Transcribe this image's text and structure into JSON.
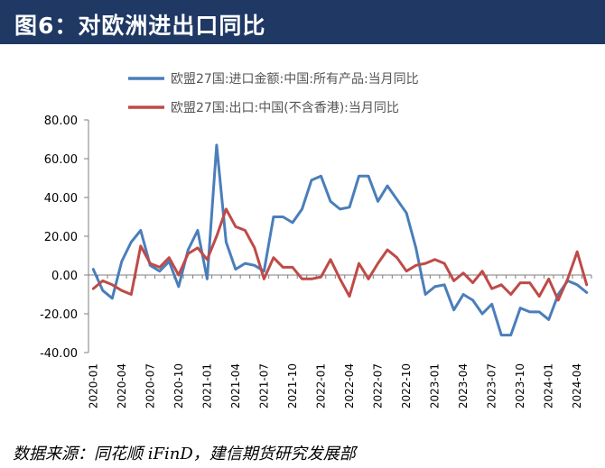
{
  "title": "图6：对欧洲进出口同比",
  "source": "数据来源：同花顺 iFinD，建信期货研究发展部",
  "colors": {
    "import": "#4a7ebb",
    "export": "#be4b48",
    "title_bg": "#1f3864"
  },
  "chart_data": {
    "type": "line",
    "title": "",
    "xlabel": "",
    "ylabel": "",
    "ylim": [
      -40,
      80
    ],
    "yticks": [
      "80.00",
      "60.00",
      "40.00",
      "20.00",
      "0.00",
      "-20.00",
      "-40.00"
    ],
    "x": [
      "2020-01",
      "2020-02",
      "2020-03",
      "2020-04",
      "2020-05",
      "2020-06",
      "2020-07",
      "2020-08",
      "2020-09",
      "2020-10",
      "2020-11",
      "2020-12",
      "2021-01",
      "2021-02",
      "2021-03",
      "2021-04",
      "2021-05",
      "2021-06",
      "2021-07",
      "2021-08",
      "2021-09",
      "2021-10",
      "2021-11",
      "2021-12",
      "2022-01",
      "2022-02",
      "2022-03",
      "2022-04",
      "2022-05",
      "2022-06",
      "2022-07",
      "2022-08",
      "2022-09",
      "2022-10",
      "2022-11",
      "2022-12",
      "2023-01",
      "2023-02",
      "2023-03",
      "2023-04",
      "2023-05",
      "2023-06",
      "2023-07",
      "2023-08",
      "2023-09",
      "2023-10",
      "2023-11",
      "2023-12",
      "2024-01",
      "2024-02",
      "2024-03",
      "2024-04",
      "2024-05"
    ],
    "xtick_labels": [
      "2020-01",
      "2020-04",
      "2020-07",
      "2020-10",
      "2021-01",
      "2021-04",
      "2021-07",
      "2021-10",
      "2022-01",
      "2022-04",
      "2022-07",
      "2022-10",
      "2023-01",
      "2023-04",
      "2023-07",
      "2023-10",
      "2024-01",
      "2024-04"
    ],
    "series": [
      {
        "name": "欧盟27国:进口金额:中国:所有产品:当月同比",
        "color": "#4a7ebb",
        "values": [
          3,
          -8,
          -12,
          7,
          17,
          23,
          5,
          2,
          7,
          -6,
          13,
          23,
          -2,
          67,
          17,
          3,
          6,
          5,
          2,
          30,
          30,
          27,
          34,
          49,
          51,
          38,
          34,
          35,
          51,
          51,
          38,
          46,
          39,
          32,
          14,
          -10,
          -6,
          -5,
          -18,
          -10,
          -13,
          -20,
          -15,
          -31,
          -31,
          -17,
          -19,
          -19,
          -23,
          -10,
          -3,
          -5,
          -9
        ]
      },
      {
        "name": "欧盟27国:出口:中国(不含香港):当月同比",
        "color": "#be4b48",
        "values": [
          -7,
          -3,
          -5,
          -8,
          -10,
          15,
          6,
          4,
          9,
          0,
          11,
          14,
          8,
          20,
          34,
          25,
          23,
          14,
          -2,
          9,
          4,
          4,
          -2,
          -2,
          -1,
          8,
          -2,
          -11,
          6,
          -2,
          6,
          13,
          9,
          2,
          5,
          6,
          8,
          6,
          -3,
          1,
          -4,
          2,
          -7,
          -5,
          -10,
          -4,
          -4,
          -11,
          -2,
          -13,
          -2,
          12,
          -5
        ]
      }
    ]
  }
}
